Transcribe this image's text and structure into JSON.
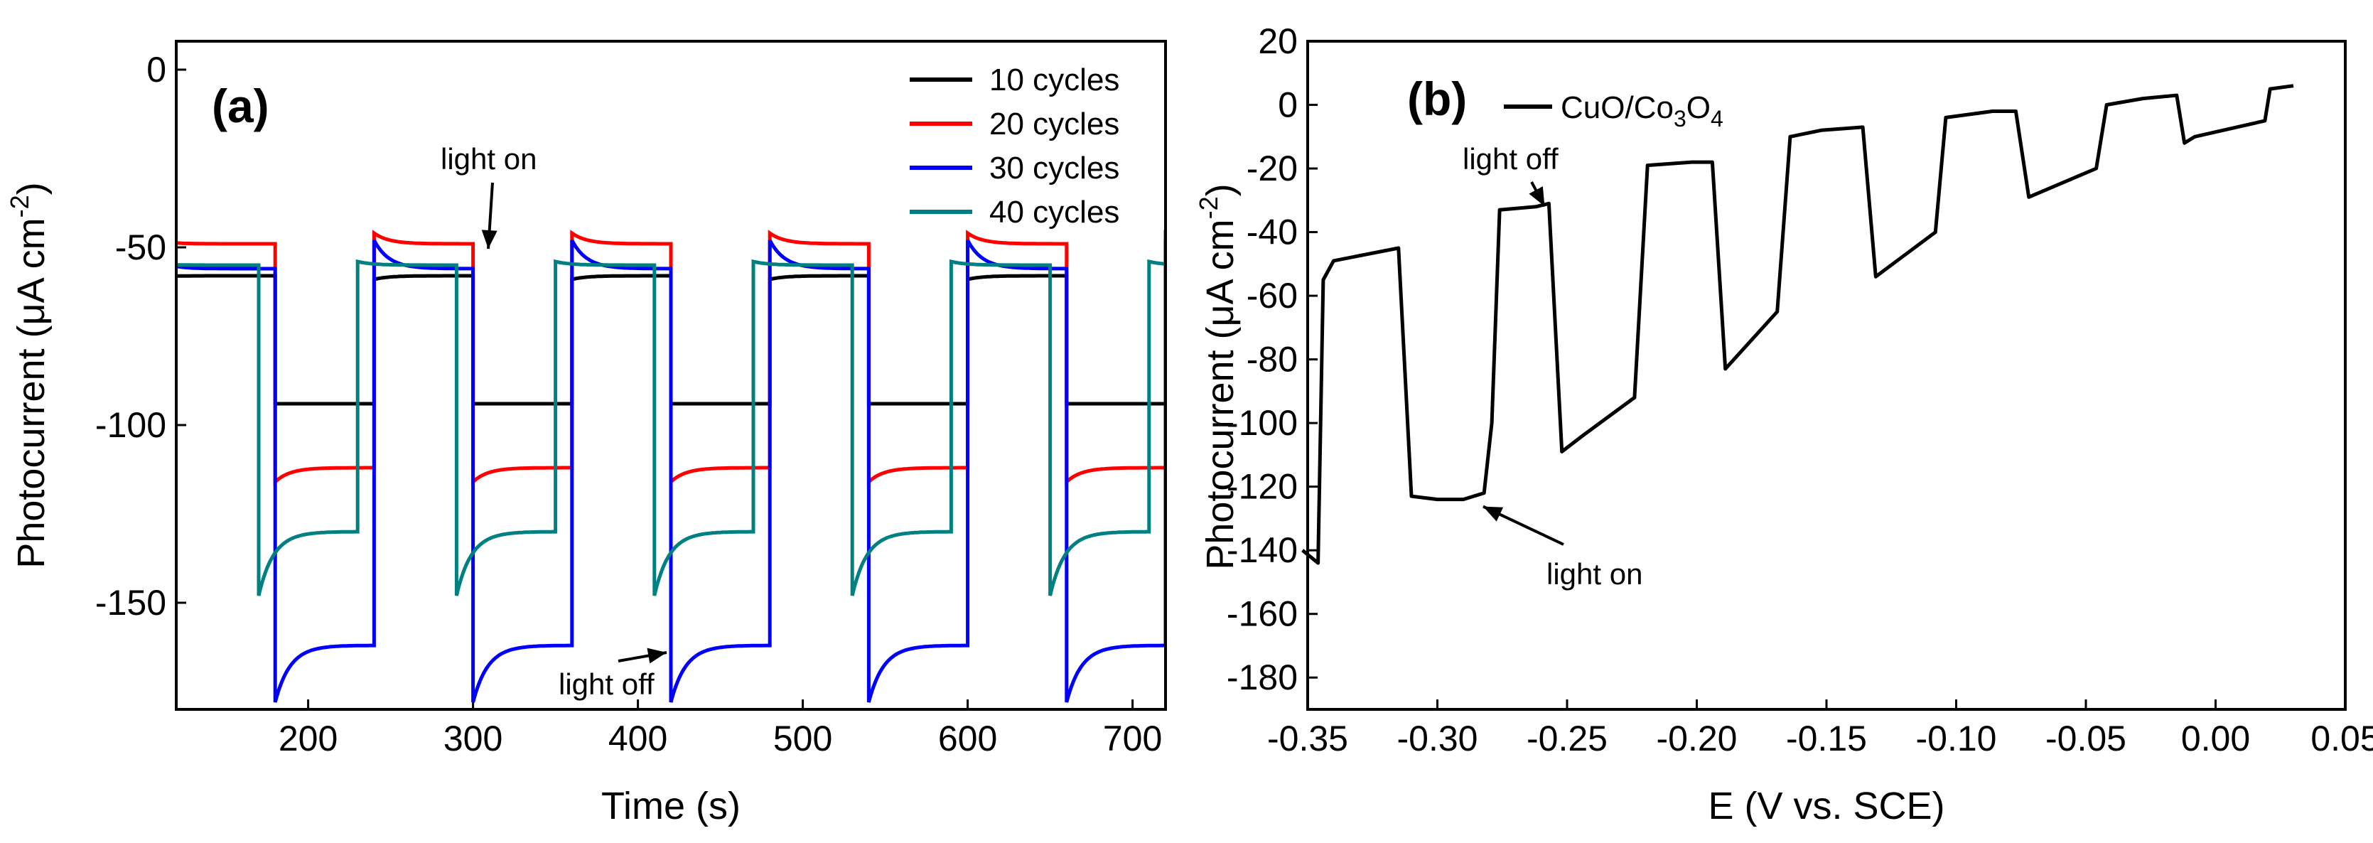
{
  "chart_data": [
    {
      "panel": "(a)",
      "type": "line",
      "xlabel": "Time (s)",
      "ylabel": "Photocurrent (μA cm",
      "ylabel_sup": "-2",
      "ylabel_close": ")",
      "xlim": [
        120,
        720
      ],
      "ylim": [
        -180,
        8
      ],
      "xticks": [
        200,
        300,
        400,
        500,
        600,
        700
      ],
      "yticks": [
        0,
        -50,
        -100,
        -150
      ],
      "legend_position": "top-right",
      "annotations": [
        {
          "text": "light on",
          "x": 317,
          "y": -50
        },
        {
          "text": "light off",
          "x": 420,
          "y": -162
        }
      ],
      "series": [
        {
          "name": "10 cycles",
          "color": "#000000",
          "on_level": -94,
          "off_level": -58,
          "off_start": -59,
          "on_start": -94,
          "on_times": [
            180,
            300,
            420,
            540,
            660
          ],
          "off_times": [
            240,
            360,
            480,
            600,
            720
          ]
        },
        {
          "name": "20 cycles",
          "color": "#ff0000",
          "on_level": -112,
          "off_level": -49,
          "off_start": -46,
          "on_start": -116,
          "on_times": [
            180,
            300,
            420,
            540,
            660
          ],
          "off_times": [
            240,
            360,
            480,
            600,
            720
          ]
        },
        {
          "name": "30 cycles",
          "color": "#0000ff",
          "on_level": -162,
          "off_level": -56,
          "off_start": -48,
          "on_start": -178,
          "on_times": [
            180,
            300,
            420,
            540,
            660
          ],
          "off_times": [
            240,
            360,
            480,
            600,
            720
          ]
        },
        {
          "name": "40 cycles",
          "color": "#008080",
          "on_level": -130,
          "off_level": -55,
          "off_start": -54,
          "on_start": -148,
          "on_times": [
            170,
            290,
            410,
            530,
            650
          ],
          "off_times": [
            230,
            350,
            470,
            590,
            710
          ]
        }
      ]
    },
    {
      "panel": "(b)",
      "type": "line",
      "xlabel": "E (V vs. SCE)",
      "ylabel": "Photocurrent (μA cm",
      "ylabel_sup": "-2",
      "ylabel_close": ")",
      "xlim": [
        -0.35,
        0.05
      ],
      "ylim": [
        -190,
        20
      ],
      "xticks": [
        -0.35,
        -0.3,
        -0.25,
        -0.2,
        -0.15,
        -0.1,
        -0.05,
        0.0,
        0.05
      ],
      "xtick_labels": [
        "-0.35",
        "-0.30",
        "-0.25",
        "-0.20",
        "-0.15",
        "-0.10",
        "-0.05",
        "0.00",
        "0.05"
      ],
      "yticks": [
        20,
        0,
        -20,
        -40,
        -60,
        -80,
        -100,
        -120,
        -140,
        -160,
        -180
      ],
      "legend_position": "top-left",
      "legend": {
        "name": "CuO/Co",
        "sub1": "3",
        "mid": "O",
        "sub2": "4",
        "color": "#000000"
      },
      "annotations": [
        {
          "text": "light off",
          "x": -0.257,
          "y": -31
        },
        {
          "text": "light on",
          "x": -0.284,
          "y": -124
        }
      ],
      "series": [
        {
          "name": "CuO/Co3O4",
          "color": "#000000",
          "x": [
            -0.352,
            -0.346,
            -0.344,
            -0.34,
            -0.315,
            -0.31,
            -0.3,
            -0.29,
            -0.282,
            -0.279,
            -0.276,
            -0.262,
            -0.257,
            -0.252,
            -0.244,
            -0.224,
            -0.219,
            -0.202,
            -0.194,
            -0.189,
            -0.169,
            -0.164,
            -0.152,
            -0.136,
            -0.131,
            -0.108,
            -0.104,
            -0.086,
            -0.077,
            -0.072,
            -0.046,
            -0.042,
            -0.028,
            -0.015,
            -0.012,
            -0.008,
            0.019,
            0.021,
            0.03
          ],
          "y": [
            -140,
            -144,
            -55,
            -49,
            -45,
            -123,
            -124,
            -124,
            -122,
            -100,
            -33,
            -32,
            -31,
            -109,
            -104,
            -92,
            -19,
            -18,
            -18,
            -83,
            -65,
            -10,
            -8,
            -7,
            -54,
            -40,
            -4,
            -2,
            -2,
            -29,
            -20,
            0,
            2,
            3,
            -12,
            -10,
            -5,
            5,
            6
          ]
        }
      ]
    }
  ]
}
